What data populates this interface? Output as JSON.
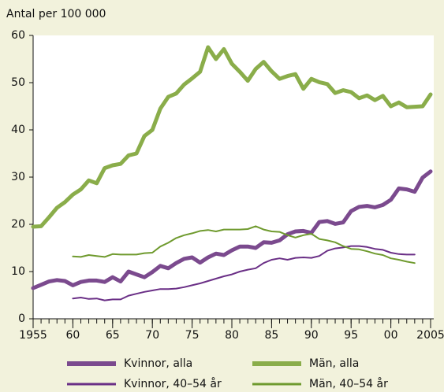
{
  "chart_data": {
    "type": "line",
    "y_label": "Antal per 100 000",
    "x": [
      1955,
      1956,
      1957,
      1958,
      1959,
      1960,
      1961,
      1962,
      1963,
      1964,
      1965,
      1966,
      1967,
      1968,
      1969,
      1970,
      1971,
      1972,
      1973,
      1974,
      1975,
      1976,
      1977,
      1978,
      1979,
      1980,
      1981,
      1982,
      1983,
      1984,
      1985,
      1986,
      1987,
      1988,
      1989,
      1990,
      1991,
      1992,
      1993,
      1994,
      1995,
      1996,
      1997,
      1998,
      1999,
      2000,
      2001,
      2002,
      2003,
      2004,
      2005
    ],
    "series": [
      {
        "name": "Kvinnor, alla",
        "color": "#7b4a8e",
        "line_width": 5,
        "values": [
          6.5,
          7.2,
          7.9,
          8.2,
          8,
          7.1,
          7.8,
          8.1,
          8.1,
          7.8,
          8.8,
          7.9,
          10,
          9.4,
          8.8,
          9.9,
          11.2,
          10.7,
          11.8,
          12.7,
          13,
          11.9,
          13,
          13.8,
          13.5,
          14.5,
          15.3,
          15.3,
          15,
          16.2,
          16.1,
          16.6,
          17.9,
          18.5,
          18.6,
          18.2,
          20.5,
          20.7,
          20.1,
          20.4,
          22.8,
          23.7,
          23.9,
          23.6,
          24.1,
          25.2,
          27.6,
          27.4,
          26.9,
          29.9,
          31.2
        ]
      },
      {
        "name": "Män, alla",
        "color": "#8aad4a",
        "line_width": 5,
        "values": [
          19.5,
          19.6,
          21.5,
          23.5,
          24.7,
          26.3,
          27.4,
          29.3,
          28.7,
          31.9,
          32.5,
          32.8,
          34.6,
          35,
          38.7,
          40,
          44.5,
          47,
          47.7,
          49.6,
          50.9,
          52.3,
          57.5,
          55,
          57.1,
          54,
          52.3,
          50.4,
          52.9,
          54.4,
          52.4,
          50.8,
          51.4,
          51.8,
          48.7,
          50.8,
          50.1,
          49.7,
          47.8,
          48.4,
          48,
          46.7,
          47.3,
          46.3,
          47.2,
          45,
          45.8,
          44.8,
          44.9,
          45,
          47.5
        ]
      },
      {
        "name": "Kvinnor, 40–54 år",
        "color": "#6a2f86",
        "line_width": 2,
        "values": [
          null,
          null,
          null,
          null,
          null,
          4.3,
          4.5,
          4.2,
          4.3,
          3.9,
          4.1,
          4.1,
          4.9,
          5.3,
          5.7,
          6,
          6.3,
          6.3,
          6.4,
          6.7,
          7.1,
          7.5,
          8,
          8.5,
          9,
          9.4,
          10,
          10.4,
          10.7,
          11.8,
          12.5,
          12.8,
          12.5,
          12.9,
          13,
          12.9,
          13.3,
          14.4,
          14.9,
          15.1,
          15.4,
          15.4,
          15.2,
          14.8,
          14.6,
          14,
          13.7,
          13.6,
          13.6,
          null,
          null
        ]
      },
      {
        "name": "Män, 40–54 år",
        "color": "#6f9a2e",
        "line_width": 2,
        "values": [
          null,
          null,
          null,
          null,
          null,
          13.2,
          13.1,
          13.5,
          13.3,
          13.1,
          13.7,
          13.6,
          13.6,
          13.6,
          13.9,
          14,
          15.3,
          16.1,
          17.1,
          17.7,
          18.1,
          18.6,
          18.8,
          18.5,
          18.9,
          18.9,
          18.9,
          19,
          19.6,
          18.9,
          18.5,
          18.4,
          17.7,
          17.2,
          17.7,
          18,
          16.9,
          16.6,
          16.2,
          15.4,
          14.8,
          14.7,
          14.3,
          13.8,
          13.5,
          12.8,
          12.5,
          12.1,
          11.8,
          null,
          null
        ]
      }
    ],
    "xlim": [
      1955,
      2005
    ],
    "xticks": [
      1955,
      {
        "value": 1960,
        "label": "60"
      },
      {
        "value": 1965,
        "label": "65"
      },
      {
        "value": 1970,
        "label": "70"
      },
      {
        "value": 1975,
        "label": "75"
      },
      {
        "value": 1980,
        "label": "80"
      },
      {
        "value": 1985,
        "label": "85"
      },
      {
        "value": 1990,
        "label": "90"
      },
      {
        "value": 1995,
        "label": "95"
      },
      {
        "value": 2000,
        "label": "00"
      },
      2005
    ],
    "ylim": [
      0,
      60
    ],
    "yticks": [
      0,
      10,
      20,
      30,
      40,
      50,
      60
    ],
    "grid": false
  }
}
